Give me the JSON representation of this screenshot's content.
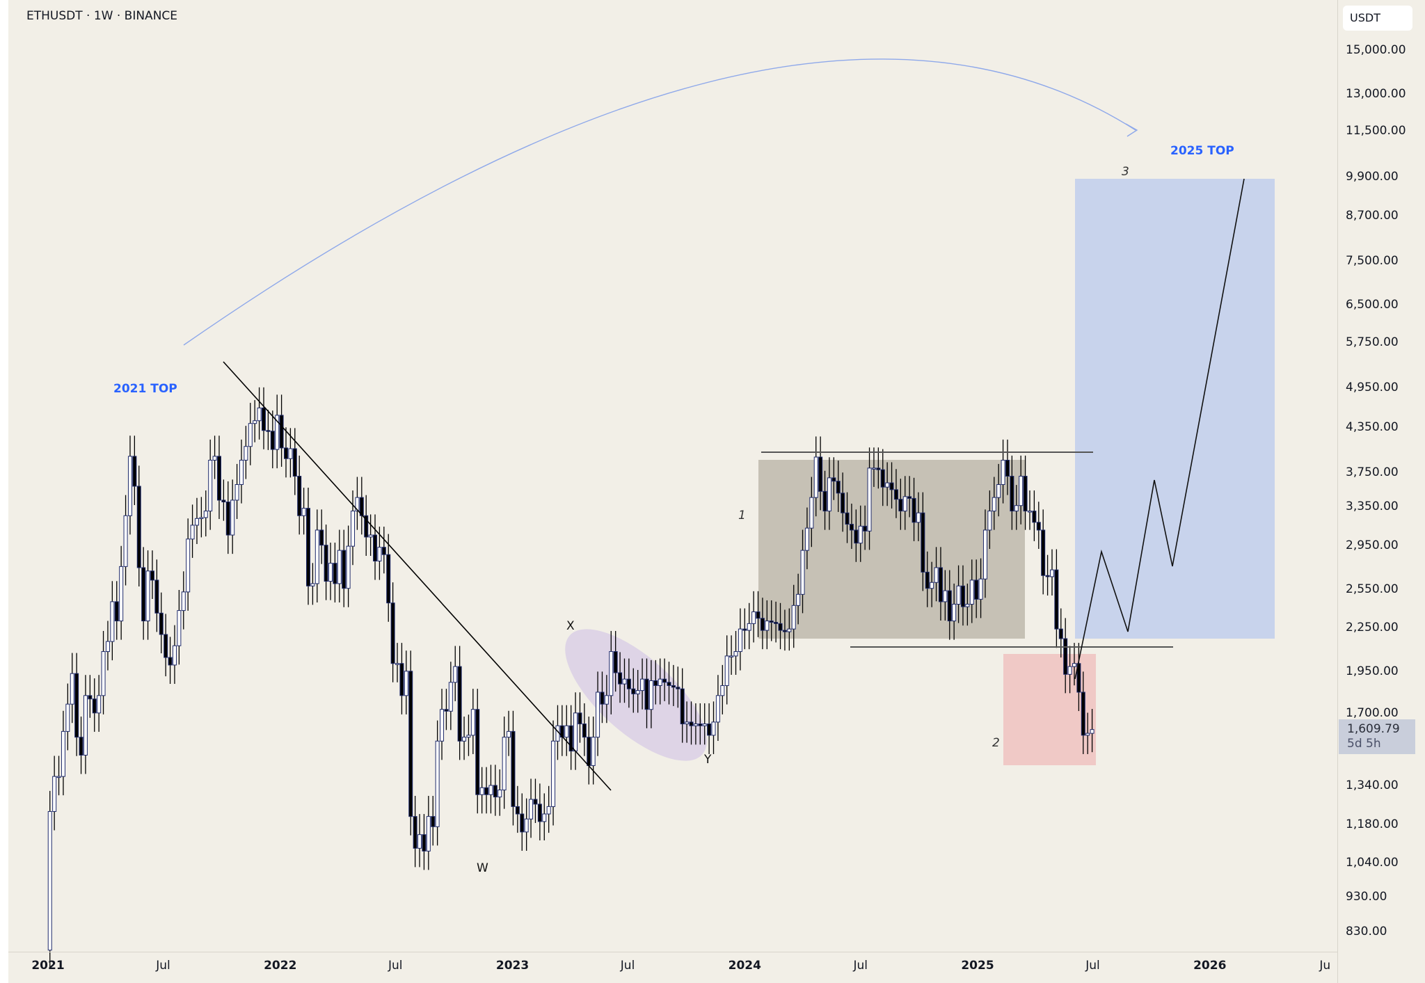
{
  "header": {
    "symbol": "ETHUSDT · 1W · BINANCE"
  },
  "price_axis": {
    "currency": "USDT",
    "last_price": "1,609.79",
    "countdown": "5d 5h"
  },
  "chart_data": {
    "type": "candlestick",
    "scale": "log",
    "ylim": [
      780,
      16500
    ],
    "y_ticks": [
      "15,000.00",
      "13,000.00",
      "11,500.00",
      "9,900.00",
      "8,700.00",
      "7,500.00",
      "6,500.00",
      "5,750.00",
      "4,950.00",
      "4,350.00",
      "3,750.00",
      "3,350.00",
      "2,950.00",
      "2,550.00",
      "2,250.00",
      "1,950.00",
      "1,700.00",
      "1,340.00",
      "1,180.00",
      "1,040.00",
      "930.00",
      "830.00"
    ],
    "x_ticks": [
      {
        "label": "2021",
        "date": "2021-01-01",
        "bold": true
      },
      {
        "label": "Jul",
        "date": "2021-07-01"
      },
      {
        "label": "2022",
        "date": "2022-01-01",
        "bold": true
      },
      {
        "label": "Jul",
        "date": "2022-07-01"
      },
      {
        "label": "2023",
        "date": "2023-01-01",
        "bold": true
      },
      {
        "label": "Jul",
        "date": "2023-07-01"
      },
      {
        "label": "2024",
        "date": "2024-01-01",
        "bold": true
      },
      {
        "label": "Jul",
        "date": "2024-07-01"
      },
      {
        "label": "2025",
        "date": "2025-01-01",
        "bold": true
      },
      {
        "label": "Jul",
        "date": "2025-07-01"
      },
      {
        "label": "2026",
        "date": "2026-01-01",
        "bold": true
      },
      {
        "label": "Ju",
        "date": "2026-07-01"
      }
    ],
    "first_candle": "2021-01-04",
    "interval": "1W",
    "open_first": 780,
    "weekly_close": [
      1230,
      1380,
      1380,
      1600,
      1750,
      1935,
      1570,
      1480,
      1800,
      1780,
      1700,
      1800,
      2080,
      2150,
      2450,
      2300,
      2750,
      3250,
      3950,
      3580,
      2740,
      2300,
      2710,
      2630,
      2360,
      2200,
      2040,
      1990,
      2120,
      2380,
      2530,
      3010,
      3150,
      3220,
      3230,
      3300,
      3900,
      3950,
      3420,
      3400,
      3050,
      3420,
      3600,
      3900,
      4080,
      4400,
      4440,
      4630,
      4300,
      4290,
      4040,
      4520,
      4060,
      3920,
      4050,
      3700,
      3250,
      3330,
      2580,
      2600,
      3100,
      2950,
      2620,
      2780,
      2600,
      2900,
      2560,
      2940,
      3300,
      3450,
      3250,
      3030,
      3050,
      2800,
      2930,
      2860,
      2440,
      2000,
      2000,
      1800,
      1950,
      1210,
      1090,
      1140,
      1080,
      1210,
      1170,
      1550,
      1720,
      1710,
      1880,
      1980,
      1550,
      1570,
      1580,
      1720,
      1300,
      1330,
      1300,
      1340,
      1290,
      1320,
      1570,
      1600,
      1250,
      1220,
      1150,
      1200,
      1280,
      1260,
      1190,
      1220,
      1250,
      1550,
      1630,
      1570,
      1630,
      1500,
      1700,
      1640,
      1570,
      1430,
      1570,
      1820,
      1750,
      1800,
      2080,
      1940,
      1870,
      1900,
      1840,
      1810,
      1830,
      1900,
      1720,
      1890,
      1860,
      1900,
      1880,
      1860,
      1850,
      1840,
      1640,
      1650,
      1630,
      1640,
      1630,
      1640,
      1580,
      1650,
      1800,
      1860,
      2050,
      2050,
      2080,
      2240,
      2230,
      2280,
      2370,
      2320,
      2230,
      2300,
      2290,
      2280,
      2230,
      2220,
      2240,
      2420,
      2510,
      2900,
      3120,
      3450,
      3940,
      3520,
      3300,
      3680,
      3640,
      3500,
      3280,
      3160,
      3100,
      2970,
      3140,
      3090,
      3800,
      3800,
      3780,
      3570,
      3620,
      3540,
      3430,
      3300,
      3460,
      3440,
      3180,
      3280,
      2700,
      2560,
      2610,
      2740,
      2450,
      2540,
      2300,
      2430,
      2580,
      2410,
      2430,
      2630,
      2470,
      2640,
      3100,
      3300,
      3450,
      3600,
      3900,
      3700,
      3300,
      3360,
      3700,
      3300,
      3300,
      3180,
      3100,
      2670,
      2660,
      2720,
      2240,
      2170,
      1930,
      1980,
      2000,
      1820,
      1580,
      1590,
      1610
    ],
    "annotations": {
      "top_2021": "2021 TOP",
      "top_2025": "2025 TOP",
      "wave_x": "X",
      "wave_y": "Y",
      "wave_w": "W",
      "wave_1": "1",
      "wave_2": "2",
      "wave_3": "3"
    },
    "colors": {
      "up": "#ffffff",
      "down": "#000000",
      "candle_border": "#1e2a6b",
      "arc": "#8ea8ea",
      "label": "#2962ff",
      "range_box": "#c3beb2",
      "target_box": "#c8d3ec",
      "support_box": "#f0c9c6",
      "ellipse": "#d8cde6"
    }
  }
}
